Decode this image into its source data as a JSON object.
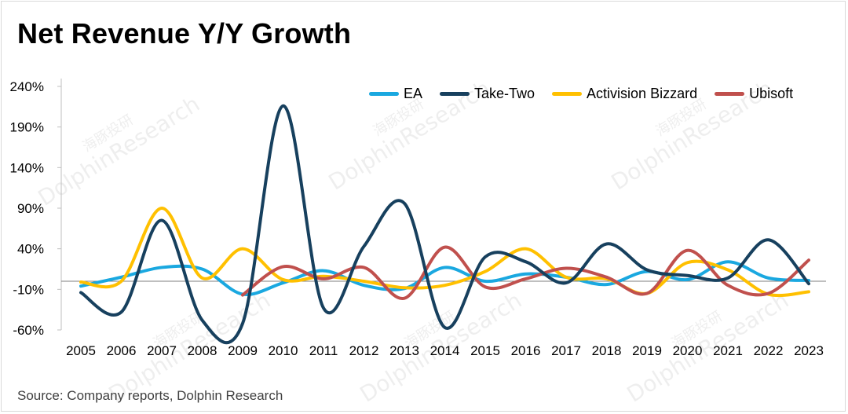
{
  "title": "Net Revenue Y/Y Growth",
  "source": "Source: Company reports, Dolphin Research",
  "chart_data": {
    "type": "line",
    "title": "Net Revenue Y/Y Growth",
    "xlabel": "",
    "ylabel": "",
    "categories": [
      "2005",
      "2006",
      "2007",
      "2008",
      "2009",
      "2010",
      "2011",
      "2012",
      "2013",
      "2014",
      "2015",
      "2016",
      "2017",
      "2018",
      "2019",
      "2020",
      "2021",
      "2022",
      "2023"
    ],
    "ylim": [
      -60,
      240
    ],
    "yticks": [
      240,
      190,
      140,
      90,
      40,
      -10,
      -60
    ],
    "ytick_labels": [
      "240%",
      "190%",
      "140%",
      "90%",
      "40%",
      "-10%",
      "-60%"
    ],
    "zero_line": 0,
    "legend_position": "top-right",
    "grid": false,
    "series": [
      {
        "name": "EA",
        "color": "#1aa8e0",
        "values": [
          -6,
          5,
          17,
          15,
          -16,
          -2,
          13,
          -5,
          -9,
          17,
          0,
          9,
          5,
          -4,
          12,
          2,
          24,
          4,
          1
        ]
      },
      {
        "name": "Take-Two",
        "color": "#17405e",
        "values": [
          -14,
          -38,
          75,
          -48,
          -52,
          216,
          -33,
          43,
          96,
          -57,
          30,
          24,
          -2,
          46,
          14,
          7,
          4,
          51,
          -3
        ]
      },
      {
        "name": "Activision Bizzard",
        "color": "#ffc000",
        "values": [
          -1,
          0,
          90,
          4,
          40,
          2,
          6,
          0,
          -8,
          -5,
          12,
          40,
          5,
          3,
          -15,
          23,
          14,
          -16,
          -13
        ]
      },
      {
        "name": "Ubisoft",
        "color": "#c0504d",
        "values": [
          null,
          null,
          null,
          null,
          -17,
          18,
          3,
          17,
          -21,
          42,
          -7,
          3,
          16,
          5,
          -15,
          38,
          -5,
          -15,
          26
        ]
      }
    ]
  },
  "watermark_text": [
    "海豚投研",
    "DolphinResearch"
  ]
}
